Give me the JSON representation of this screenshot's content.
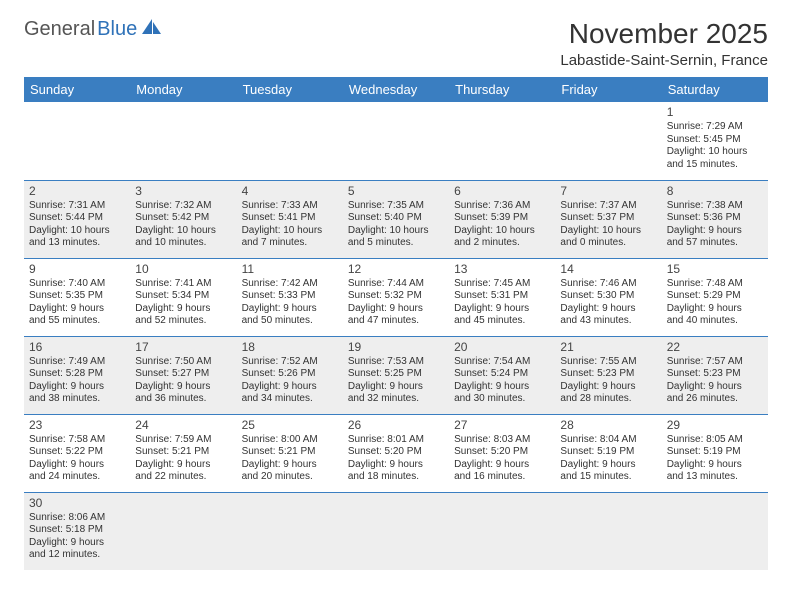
{
  "colors": {
    "header_bg": "#3a7ec1",
    "header_text": "#ffffff",
    "alt_row_bg": "#eeeeee",
    "row_border": "#3a7ec1",
    "logo_gray": "#555555",
    "logo_blue": "#2f72b8",
    "text": "#333333"
  },
  "logo": {
    "gray": "General",
    "blue": "Blue"
  },
  "title": "November 2025",
  "location": "Labastide-Saint-Sernin, France",
  "day_headers": [
    "Sunday",
    "Monday",
    "Tuesday",
    "Wednesday",
    "Thursday",
    "Friday",
    "Saturday"
  ],
  "weeks": [
    [
      null,
      null,
      null,
      null,
      null,
      null,
      {
        "n": "1",
        "sunrise": "Sunrise: 7:29 AM",
        "sunset": "Sunset: 5:45 PM",
        "day1": "Daylight: 10 hours",
        "day2": "and 15 minutes."
      }
    ],
    [
      {
        "n": "2",
        "sunrise": "Sunrise: 7:31 AM",
        "sunset": "Sunset: 5:44 PM",
        "day1": "Daylight: 10 hours",
        "day2": "and 13 minutes."
      },
      {
        "n": "3",
        "sunrise": "Sunrise: 7:32 AM",
        "sunset": "Sunset: 5:42 PM",
        "day1": "Daylight: 10 hours",
        "day2": "and 10 minutes."
      },
      {
        "n": "4",
        "sunrise": "Sunrise: 7:33 AM",
        "sunset": "Sunset: 5:41 PM",
        "day1": "Daylight: 10 hours",
        "day2": "and 7 minutes."
      },
      {
        "n": "5",
        "sunrise": "Sunrise: 7:35 AM",
        "sunset": "Sunset: 5:40 PM",
        "day1": "Daylight: 10 hours",
        "day2": "and 5 minutes."
      },
      {
        "n": "6",
        "sunrise": "Sunrise: 7:36 AM",
        "sunset": "Sunset: 5:39 PM",
        "day1": "Daylight: 10 hours",
        "day2": "and 2 minutes."
      },
      {
        "n": "7",
        "sunrise": "Sunrise: 7:37 AM",
        "sunset": "Sunset: 5:37 PM",
        "day1": "Daylight: 10 hours",
        "day2": "and 0 minutes."
      },
      {
        "n": "8",
        "sunrise": "Sunrise: 7:38 AM",
        "sunset": "Sunset: 5:36 PM",
        "day1": "Daylight: 9 hours",
        "day2": "and 57 minutes."
      }
    ],
    [
      {
        "n": "9",
        "sunrise": "Sunrise: 7:40 AM",
        "sunset": "Sunset: 5:35 PM",
        "day1": "Daylight: 9 hours",
        "day2": "and 55 minutes."
      },
      {
        "n": "10",
        "sunrise": "Sunrise: 7:41 AM",
        "sunset": "Sunset: 5:34 PM",
        "day1": "Daylight: 9 hours",
        "day2": "and 52 minutes."
      },
      {
        "n": "11",
        "sunrise": "Sunrise: 7:42 AM",
        "sunset": "Sunset: 5:33 PM",
        "day1": "Daylight: 9 hours",
        "day2": "and 50 minutes."
      },
      {
        "n": "12",
        "sunrise": "Sunrise: 7:44 AM",
        "sunset": "Sunset: 5:32 PM",
        "day1": "Daylight: 9 hours",
        "day2": "and 47 minutes."
      },
      {
        "n": "13",
        "sunrise": "Sunrise: 7:45 AM",
        "sunset": "Sunset: 5:31 PM",
        "day1": "Daylight: 9 hours",
        "day2": "and 45 minutes."
      },
      {
        "n": "14",
        "sunrise": "Sunrise: 7:46 AM",
        "sunset": "Sunset: 5:30 PM",
        "day1": "Daylight: 9 hours",
        "day2": "and 43 minutes."
      },
      {
        "n": "15",
        "sunrise": "Sunrise: 7:48 AM",
        "sunset": "Sunset: 5:29 PM",
        "day1": "Daylight: 9 hours",
        "day2": "and 40 minutes."
      }
    ],
    [
      {
        "n": "16",
        "sunrise": "Sunrise: 7:49 AM",
        "sunset": "Sunset: 5:28 PM",
        "day1": "Daylight: 9 hours",
        "day2": "and 38 minutes."
      },
      {
        "n": "17",
        "sunrise": "Sunrise: 7:50 AM",
        "sunset": "Sunset: 5:27 PM",
        "day1": "Daylight: 9 hours",
        "day2": "and 36 minutes."
      },
      {
        "n": "18",
        "sunrise": "Sunrise: 7:52 AM",
        "sunset": "Sunset: 5:26 PM",
        "day1": "Daylight: 9 hours",
        "day2": "and 34 minutes."
      },
      {
        "n": "19",
        "sunrise": "Sunrise: 7:53 AM",
        "sunset": "Sunset: 5:25 PM",
        "day1": "Daylight: 9 hours",
        "day2": "and 32 minutes."
      },
      {
        "n": "20",
        "sunrise": "Sunrise: 7:54 AM",
        "sunset": "Sunset: 5:24 PM",
        "day1": "Daylight: 9 hours",
        "day2": "and 30 minutes."
      },
      {
        "n": "21",
        "sunrise": "Sunrise: 7:55 AM",
        "sunset": "Sunset: 5:23 PM",
        "day1": "Daylight: 9 hours",
        "day2": "and 28 minutes."
      },
      {
        "n": "22",
        "sunrise": "Sunrise: 7:57 AM",
        "sunset": "Sunset: 5:23 PM",
        "day1": "Daylight: 9 hours",
        "day2": "and 26 minutes."
      }
    ],
    [
      {
        "n": "23",
        "sunrise": "Sunrise: 7:58 AM",
        "sunset": "Sunset: 5:22 PM",
        "day1": "Daylight: 9 hours",
        "day2": "and 24 minutes."
      },
      {
        "n": "24",
        "sunrise": "Sunrise: 7:59 AM",
        "sunset": "Sunset: 5:21 PM",
        "day1": "Daylight: 9 hours",
        "day2": "and 22 minutes."
      },
      {
        "n": "25",
        "sunrise": "Sunrise: 8:00 AM",
        "sunset": "Sunset: 5:21 PM",
        "day1": "Daylight: 9 hours",
        "day2": "and 20 minutes."
      },
      {
        "n": "26",
        "sunrise": "Sunrise: 8:01 AM",
        "sunset": "Sunset: 5:20 PM",
        "day1": "Daylight: 9 hours",
        "day2": "and 18 minutes."
      },
      {
        "n": "27",
        "sunrise": "Sunrise: 8:03 AM",
        "sunset": "Sunset: 5:20 PM",
        "day1": "Daylight: 9 hours",
        "day2": "and 16 minutes."
      },
      {
        "n": "28",
        "sunrise": "Sunrise: 8:04 AM",
        "sunset": "Sunset: 5:19 PM",
        "day1": "Daylight: 9 hours",
        "day2": "and 15 minutes."
      },
      {
        "n": "29",
        "sunrise": "Sunrise: 8:05 AM",
        "sunset": "Sunset: 5:19 PM",
        "day1": "Daylight: 9 hours",
        "day2": "and 13 minutes."
      }
    ],
    [
      {
        "n": "30",
        "sunrise": "Sunrise: 8:06 AM",
        "sunset": "Sunset: 5:18 PM",
        "day1": "Daylight: 9 hours",
        "day2": "and 12 minutes."
      },
      null,
      null,
      null,
      null,
      null,
      null
    ]
  ]
}
